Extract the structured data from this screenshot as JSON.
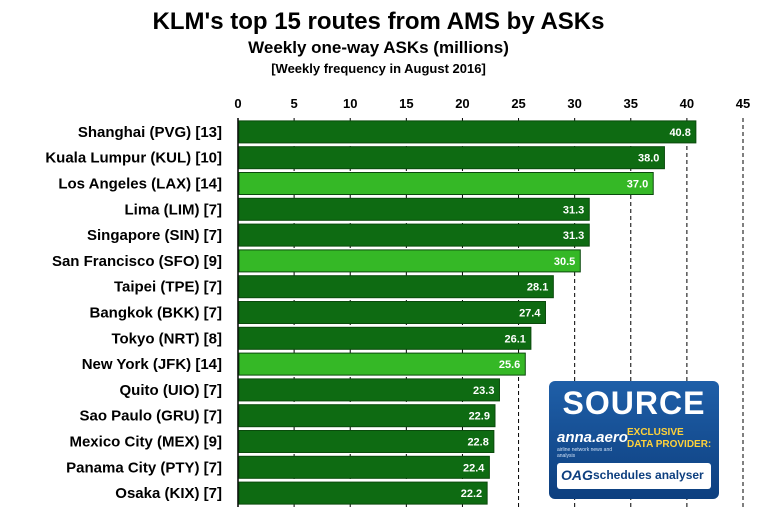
{
  "chart_data": {
    "type": "bar",
    "orientation": "horizontal",
    "title": "KLM's top 15 routes from AMS by ASKs",
    "subtitle": "Weekly one-way ASKs (millions)",
    "note": "[Weekly frequency in August 2016]",
    "categories": [
      "Shanghai (PVG) [13]",
      "Kuala Lumpur (KUL) [10]",
      "Los Angeles (LAX) [14]",
      "Lima (LIM) [7]",
      "Singapore (SIN) [7]",
      "San Francisco (SFO) [9]",
      "Taipei (TPE) [7]",
      "Bangkok (BKK) [7]",
      "Tokyo (NRT) [8]",
      "New York (JFK) [14]",
      "Quito (UIO) [7]",
      "Sao Paulo (GRU) [7]",
      "Mexico City (MEX) [9]",
      "Panama City (PTY) [7]",
      "Osaka (KIX) [7]"
    ],
    "values": [
      40.8,
      38.0,
      37.0,
      31.3,
      31.3,
      30.5,
      28.1,
      27.4,
      26.1,
      25.6,
      23.3,
      22.9,
      22.8,
      22.4,
      22.2
    ],
    "value_labels": [
      "40.8",
      "38.0",
      "37.0",
      "31.3",
      "31.3",
      "30.5",
      "28.1",
      "27.4",
      "26.1",
      "25.6",
      "23.3",
      "22.9",
      "22.8",
      "22.4",
      "22.2"
    ],
    "highlighted": [
      false,
      false,
      true,
      false,
      false,
      true,
      false,
      false,
      false,
      true,
      false,
      false,
      false,
      false,
      false
    ],
    "xlim": [
      0,
      45
    ],
    "xticks": [
      "0",
      "5",
      "10",
      "15",
      "20",
      "25",
      "30",
      "35",
      "40",
      "45"
    ],
    "grid": "vertical-dashed",
    "colors": {
      "bar": "#0e6b12",
      "bar_highlight": "#35b826",
      "bar_border": "#0a4a0c",
      "grid": "#000000"
    }
  },
  "source_box": {
    "title": "SOURCE",
    "anna_logo": "anna.aero",
    "anna_tagline": "airline network news and analysis",
    "provider_line1": "EXCLUSIVE",
    "provider_line2": "DATA PROVIDER:",
    "oag_logo": "OAG",
    "oag_text": "schedules analyser"
  }
}
